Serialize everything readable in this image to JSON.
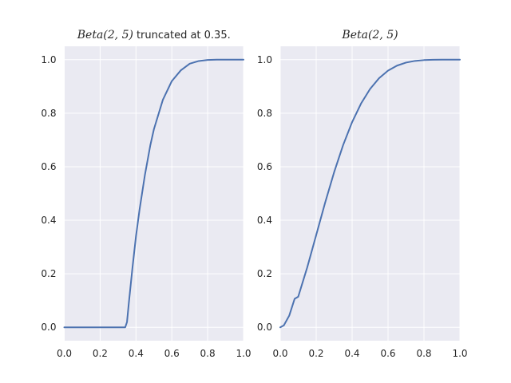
{
  "chart_data": [
    {
      "type": "line",
      "title_math": "Beta(2, 5)",
      "title_suffix": "truncated at 0.35.",
      "xlabel": "",
      "ylabel": "",
      "xlim": [
        0.0,
        1.0
      ],
      "ylim": [
        -0.05,
        1.05
      ],
      "xticks": [
        "0.0",
        "0.2",
        "0.4",
        "0.6",
        "0.8",
        "1.0"
      ],
      "yticks": [
        "0.0",
        "0.2",
        "0.4",
        "0.6",
        "0.8",
        "1.0"
      ],
      "grid": true,
      "color": "#4c72b0",
      "series": [
        {
          "x": [
            0.0,
            0.05,
            0.1,
            0.15,
            0.2,
            0.25,
            0.3,
            0.34,
            0.35,
            0.36,
            0.38,
            0.4,
            0.42,
            0.45,
            0.48,
            0.5,
            0.55,
            0.6,
            0.65,
            0.7,
            0.75,
            0.8,
            0.85,
            0.9,
            0.95,
            1.0
          ],
          "y": [
            0.0,
            0.0,
            0.0,
            0.0,
            0.0,
            0.0,
            0.0,
            0.0,
            0.02,
            0.09,
            0.22,
            0.34,
            0.44,
            0.57,
            0.68,
            0.74,
            0.85,
            0.92,
            0.96,
            0.985,
            0.995,
            0.999,
            1.0,
            1.0,
            1.0,
            1.0
          ]
        }
      ]
    },
    {
      "type": "line",
      "title_math": "Beta(2, 5)",
      "title_suffix": "",
      "xlabel": "",
      "ylabel": "",
      "xlim": [
        0.0,
        1.0
      ],
      "ylim": [
        -0.05,
        1.05
      ],
      "xticks": [
        "0.0",
        "0.2",
        "0.4",
        "0.6",
        "0.8",
        "1.0"
      ],
      "yticks": [
        "0.0",
        "0.2",
        "0.4",
        "0.6",
        "0.8",
        "1.0"
      ],
      "grid": true,
      "color": "#4c72b0",
      "series": [
        {
          "x": [
            0.0,
            0.02,
            0.05,
            0.08,
            0.1,
            0.15,
            0.2,
            0.25,
            0.3,
            0.35,
            0.4,
            0.45,
            0.5,
            0.55,
            0.6,
            0.65,
            0.7,
            0.75,
            0.8,
            0.85,
            0.9,
            0.95,
            1.0
          ],
          "y": [
            0.0,
            0.0075,
            0.0437,
            0.1065,
            0.1143,
            0.2235,
            0.3446,
            0.4661,
            0.5798,
            0.6809,
            0.7667,
            0.8364,
            0.8906,
            0.9308,
            0.959,
            0.9777,
            0.9891,
            0.9954,
            0.9984,
            0.9996,
            0.9999,
            1.0,
            1.0
          ]
        }
      ]
    }
  ]
}
